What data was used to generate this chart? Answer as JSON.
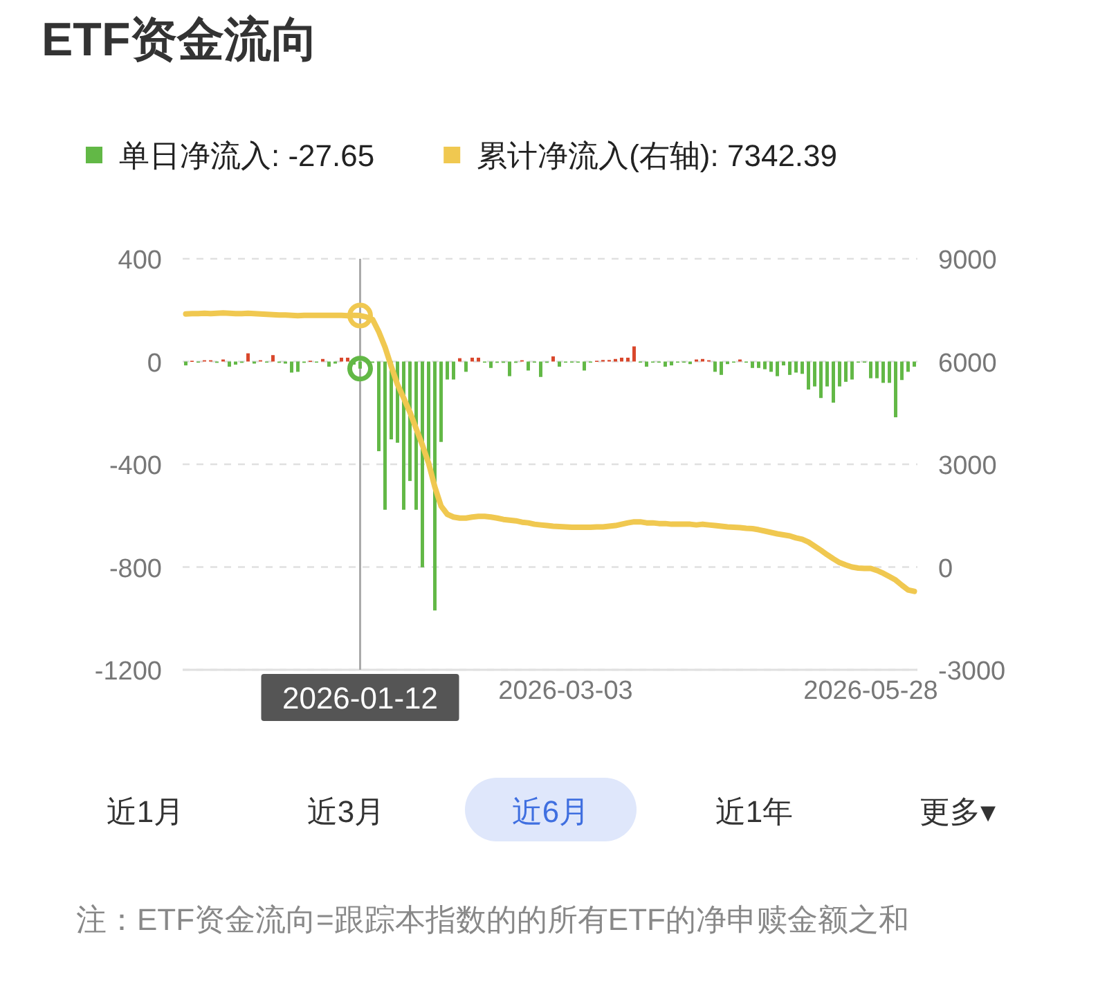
{
  "chart_data": {
    "type": "bar",
    "title": "ETF资金流向",
    "categories": [
      null,
      null,
      null,
      null,
      null,
      null,
      null,
      null,
      null,
      null,
      null,
      null,
      null,
      null,
      null,
      null,
      null,
      null,
      null,
      null,
      null,
      null,
      null,
      null,
      null,
      null,
      null,
      null,
      "2026-01-12",
      null,
      null,
      null,
      null,
      null,
      null,
      null,
      null,
      null,
      null,
      null,
      null,
      null,
      null,
      null,
      null,
      null,
      null,
      null,
      null,
      null,
      null,
      null,
      null,
      null,
      null,
      null,
      null,
      null,
      null,
      null,
      null,
      "2026-03-03",
      null,
      null,
      null,
      null,
      null,
      null,
      null,
      null,
      null,
      null,
      null,
      null,
      null,
      null,
      null,
      null,
      null,
      null,
      null,
      null,
      null,
      null,
      null,
      null,
      null,
      null,
      null,
      null,
      null,
      null,
      null,
      null,
      null,
      null,
      null,
      null,
      null,
      null,
      null,
      null,
      null,
      null,
      null,
      null,
      null,
      null,
      null,
      null,
      "2026-05-28",
      null,
      null,
      null,
      null,
      null,
      null,
      null
    ],
    "series": [
      {
        "name": "单日净流入: -27.65",
        "color": "#62b846",
        "values": [
          -15,
          3,
          -3,
          5,
          5,
          -5,
          8,
          -20,
          -12,
          -5,
          32,
          -8,
          5,
          -3,
          25,
          -5,
          -8,
          -43,
          -40,
          -5,
          3,
          -3,
          10,
          -20,
          -8,
          15,
          15,
          -12,
          -27.65,
          null,
          -5,
          -349,
          -577,
          -303,
          -316,
          -577,
          -465,
          -577,
          -801,
          -384,
          -969,
          -313,
          -70,
          -70,
          13,
          -40,
          15,
          15,
          -3,
          -25,
          -5,
          -5,
          -57,
          -5,
          5,
          -35,
          -3,
          -60,
          -5,
          20,
          -20,
          -3,
          -3,
          -3,
          -35,
          -3,
          3,
          6,
          6,
          10,
          15,
          15,
          59,
          -3,
          -20,
          -3,
          -3,
          -20,
          -15,
          -3,
          -3,
          -10,
          8,
          10,
          5,
          -40,
          -52,
          -10,
          -3,
          8,
          -3,
          -25,
          -25,
          -30,
          -40,
          -57,
          -15,
          -52,
          -43,
          -48,
          -109,
          -97,
          -142,
          -97,
          -160,
          -97,
          -79,
          -70,
          -3,
          -3,
          -65,
          -65,
          -83,
          -83,
          -217,
          -72,
          -40,
          -20
        ],
        "colors": [
          "#62b846",
          "#d9472b",
          "#62b846",
          "#d9472b",
          "#d9472b",
          "#62b846",
          "#d9472b",
          "#62b846",
          "#62b846",
          "#62b846",
          "#d9472b",
          "#62b846",
          "#d9472b",
          "#62b846",
          "#d9472b",
          "#62b846",
          "#62b846",
          "#62b846",
          "#62b846",
          "#62b846",
          "#d9472b",
          "#62b846",
          "#d9472b",
          "#62b846",
          "#62b846",
          "#d9472b",
          "#d9472b",
          "#62b846",
          "#62b846",
          null,
          "#62b846",
          "#62b846",
          "#62b846",
          "#62b846",
          "#62b846",
          "#62b846",
          "#62b846",
          "#62b846",
          "#62b846",
          "#62b846",
          "#62b846",
          "#62b846",
          "#62b846",
          "#62b846",
          "#d9472b",
          "#62b846",
          "#d9472b",
          "#d9472b",
          "#62b846",
          "#62b846",
          "#62b846",
          "#62b846",
          "#62b846",
          "#62b846",
          "#d9472b",
          "#62b846",
          "#62b846",
          "#62b846",
          "#62b846",
          "#d9472b",
          "#62b846",
          "#62b846",
          "#62b846",
          "#62b846",
          "#62b846",
          "#62b846",
          "#d9472b",
          "#d9472b",
          "#d9472b",
          "#d9472b",
          "#d9472b",
          "#d9472b",
          "#d9472b",
          "#62b846",
          "#62b846",
          "#62b846",
          "#62b846",
          "#62b846",
          "#62b846",
          "#62b846",
          "#62b846",
          "#62b846",
          "#d9472b",
          "#d9472b",
          "#d9472b",
          "#62b846",
          "#62b846",
          "#62b846",
          "#62b846",
          "#d9472b",
          "#62b846",
          "#62b846",
          "#62b846",
          "#62b846",
          "#62b846",
          "#62b846",
          "#62b846",
          "#62b846",
          "#62b846",
          "#62b846",
          "#62b846",
          "#62b846",
          "#62b846",
          "#62b846",
          "#62b846",
          "#62b846",
          "#62b846",
          "#62b846",
          "#62b846",
          "#62b846",
          "#62b846",
          "#62b846",
          "#62b846",
          "#62b846",
          "#62b846",
          "#62b846",
          "#62b846",
          "#62b846"
        ]
      },
      {
        "name": "累计净流入(右轴): 7342.39",
        "type": "line",
        "axis": "y2",
        "color": "#f0c850",
        "values": [
          7390,
          7400,
          7400,
          7410,
          7400,
          7410,
          7420,
          7410,
          7400,
          7400,
          7410,
          7400,
          7390,
          7380,
          7370,
          7360,
          7360,
          7350,
          7340,
          7350,
          7350,
          7350,
          7350,
          7350,
          7350,
          7350,
          7340,
          7350,
          7342.39,
          7300,
          7230,
          6870,
          6420,
          5860,
          5330,
          4930,
          4520,
          4040,
          3560,
          3030,
          2340,
          1780,
          1540,
          1460,
          1430,
          1430,
          1460,
          1480,
          1480,
          1460,
          1430,
          1390,
          1370,
          1350,
          1310,
          1290,
          1250,
          1230,
          1210,
          1190,
          1180,
          1170,
          1160,
          1160,
          1160,
          1160,
          1170,
          1170,
          1190,
          1210,
          1250,
          1290,
          1320,
          1320,
          1290,
          1290,
          1270,
          1270,
          1250,
          1250,
          1250,
          1250,
          1230,
          1250,
          1230,
          1210,
          1190,
          1170,
          1160,
          1150,
          1130,
          1120,
          1090,
          1050,
          1010,
          970,
          940,
          910,
          850,
          810,
          730,
          610,
          490,
          360,
          240,
          130,
          60,
          0,
          -30,
          -40,
          -40,
          -100,
          -180,
          -280,
          -380,
          -530,
          -670,
          -710
        ]
      }
    ],
    "ylim": [
      -1200,
      400
    ],
    "yticks": [
      400,
      0,
      -400,
      -800,
      -1200
    ],
    "y2lim": [
      -3000,
      9000
    ],
    "y2ticks": [
      9000,
      6000,
      3000,
      0,
      -3000
    ],
    "grid": "y",
    "legend": "top",
    "ref_lines": [
      {
        "axis": "x",
        "value": "2026-01-12",
        "color": "#aaaaaa"
      }
    ],
    "annotations": [
      "近1月",
      "近3月",
      "近6月",
      "近1年",
      "更多▾",
      "注：ETF资金流向=跟踪本指数的的所有ETF的净申赎金额之和"
    ]
  }
}
